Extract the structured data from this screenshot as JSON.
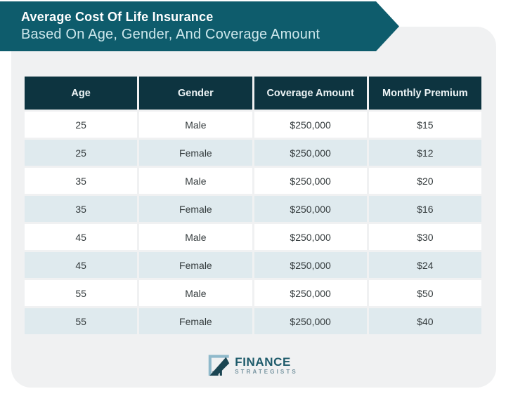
{
  "banner": {
    "title": "Average Cost Of Life Insurance",
    "subtitle": "Based On Age, Gender, And Coverage Amount"
  },
  "table": {
    "columns": [
      "Age",
      "Gender",
      "Coverage Amount",
      "Monthly Premium"
    ],
    "rows": [
      [
        "25",
        "Male",
        "$250,000",
        "$15"
      ],
      [
        "25",
        "Female",
        "$250,000",
        "$12"
      ],
      [
        "35",
        "Male",
        "$250,000",
        "$20"
      ],
      [
        "35",
        "Female",
        "$250,000",
        "$16"
      ],
      [
        "45",
        "Male",
        "$250,000",
        "$30"
      ],
      [
        "45",
        "Female",
        "$250,000",
        "$24"
      ],
      [
        "55",
        "Male",
        "$250,000",
        "$50"
      ],
      [
        "55",
        "Female",
        "$250,000",
        "$40"
      ]
    ]
  },
  "logo": {
    "name": "FINANCE",
    "tagline": "STRATEGISTS",
    "icon": "bar-chart-arrow-icon"
  },
  "colors": {
    "banner_teal": "#0e5c6c",
    "banner_subtitle": "#cde7ec",
    "header_dark_teal": "#0d3440",
    "row_alt_blue": "#dfeaee",
    "card_gray": "#f0f1f2",
    "logo_teal": "#1d5a6a",
    "logo_light_blue": "#8fb9cb"
  },
  "chart_data": {
    "type": "table",
    "title": "Average Cost Of Life Insurance Based On Age, Gender, And Coverage Amount",
    "columns": [
      "Age",
      "Gender",
      "Coverage Amount",
      "Monthly Premium"
    ],
    "rows": [
      [
        25,
        "Male",
        250000,
        15
      ],
      [
        25,
        "Female",
        250000,
        12
      ],
      [
        35,
        "Male",
        250000,
        20
      ],
      [
        35,
        "Female",
        250000,
        16
      ],
      [
        45,
        "Male",
        250000,
        30
      ],
      [
        45,
        "Female",
        250000,
        24
      ],
      [
        55,
        "Male",
        250000,
        50
      ],
      [
        55,
        "Female",
        250000,
        40
      ]
    ],
    "notes": "Monthly premium in USD; coverage amount constant at $250,000; zebra-striped table, header row dark teal"
  }
}
